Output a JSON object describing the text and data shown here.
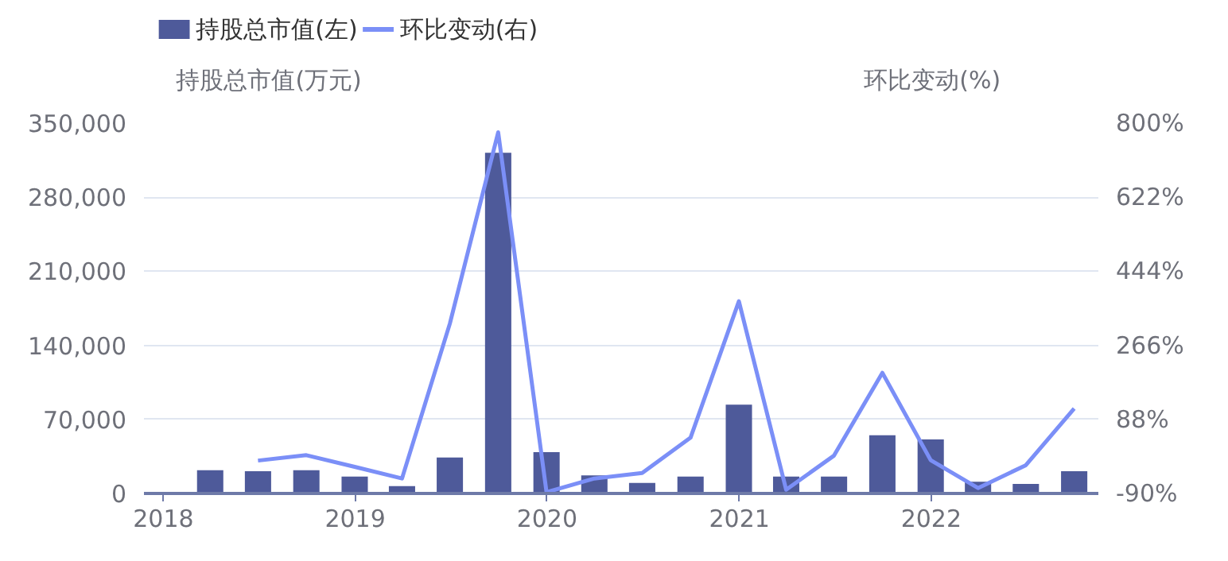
{
  "chart_data": {
    "type": "bar",
    "ylabel": "持股总市值(万元)",
    "y2label": "环比变动(%)",
    "x": [
      "2018-03-31",
      "2018-06-30",
      "2018-09-30",
      "2018-12-31",
      "2019-03-31",
      "2019-06-30",
      "2019-09-30",
      "2019-12-31",
      "2020-03-31",
      "2020-06-30",
      "2020-09-30",
      "2020-12-31",
      "2021-03-31",
      "2021-06-30",
      "2021-09-30",
      "2021-12-31",
      "2022-03-31",
      "2022-06-30",
      "2022-09-30"
    ],
    "series": [
      {
        "name": "持股总市值(左)",
        "color": "#4e5a9a",
        "values": [
          22000,
          21000,
          22000,
          16000,
          7000,
          34000,
          322000,
          39000,
          17000,
          10000,
          16000,
          84000,
          16000,
          16000,
          55000,
          51000,
          11000,
          9000,
          21000
        ]
      },
      {
        "name": "环比变动(右)",
        "type": "line",
        "axis": "y2",
        "color": "#7b8ff7",
        "values": [
          null,
          -11,
          2,
          -26,
          -54,
          318,
          778,
          -87,
          -54,
          -41,
          44,
          372,
          -81,
          1,
          200,
          -10,
          -77,
          -22,
          114
        ]
      }
    ],
    "xlim": [
      "2017-11-25",
      "2022-11-15"
    ],
    "xticks": [
      "2018",
      "2019",
      "2020",
      "2021",
      "2022"
    ],
    "ylim": [
      0,
      350000
    ],
    "yticks": [
      0,
      {
        "value": 70000,
        "label": "70,000"
      },
      {
        "value": 140000,
        "label": "140,000"
      },
      {
        "value": 210000,
        "label": "210,000"
      },
      {
        "value": 280000,
        "label": "280,000"
      },
      {
        "value": 350000,
        "label": "350,000"
      }
    ],
    "y2lim": [
      -90,
      800
    ],
    "y2ticks": [
      {
        "value": -90,
        "label": "-90%"
      },
      {
        "value": 88,
        "label": "88%"
      },
      {
        "value": 266,
        "label": "266%"
      },
      {
        "value": 444,
        "label": "444%"
      },
      {
        "value": 622,
        "label": "622%"
      },
      {
        "value": 800,
        "label": "800%"
      }
    ],
    "grid": "y",
    "legend": "top left",
    "marker": "none",
    "line_style": "solid"
  }
}
